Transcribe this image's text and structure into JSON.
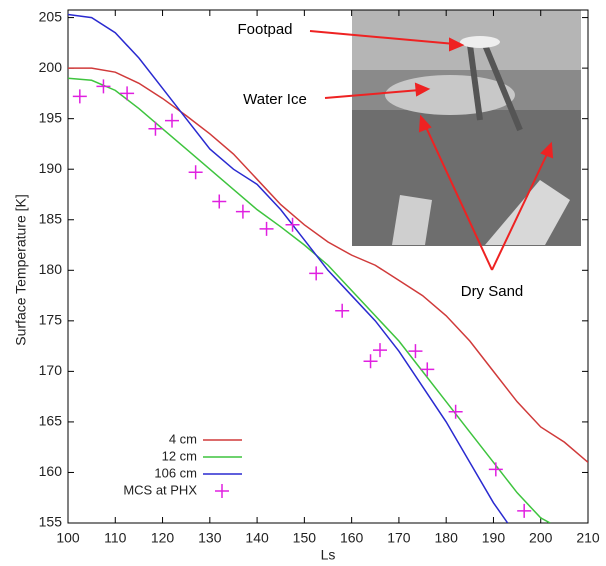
{
  "chart_data": {
    "type": "line",
    "xlabel": "Ls",
    "ylabel": "Surface Temperature [K]",
    "xlim": [
      100,
      210
    ],
    "ylim": [
      155,
      205.75
    ],
    "xticks": [
      100,
      110,
      120,
      130,
      140,
      150,
      160,
      170,
      180,
      190,
      200,
      210
    ],
    "yticks": [
      155,
      160,
      165,
      170,
      175,
      180,
      185,
      190,
      195,
      200,
      205
    ],
    "grid": false,
    "legend": "lower left",
    "annotations": [
      {
        "text": "Footpad"
      },
      {
        "text": "Water Ice"
      },
      {
        "text": "Dry Sand"
      }
    ],
    "series": [
      {
        "name": "4 cm",
        "type": "line",
        "color": "#d03a3a",
        "x": [
          100,
          105,
          110,
          115,
          120,
          125,
          130,
          135,
          140,
          145,
          150,
          155,
          160,
          165,
          170,
          175,
          180,
          185,
          190,
          195,
          200,
          205,
          210
        ],
        "values": [
          200,
          200,
          199.6,
          198.5,
          197,
          195.3,
          193.5,
          191.5,
          189,
          186.5,
          184.5,
          182.8,
          181.5,
          180.5,
          179,
          177.5,
          175.5,
          173,
          170,
          167,
          164.5,
          163,
          161
        ]
      },
      {
        "name": "12 cm",
        "type": "line",
        "color": "#3ec43e",
        "x": [
          100,
          105,
          110,
          115,
          120,
          125,
          130,
          135,
          140,
          145,
          150,
          155,
          160,
          165,
          170,
          175,
          180,
          185,
          190,
          195,
          200,
          202
        ],
        "values": [
          199,
          198.8,
          197.8,
          196,
          194,
          192,
          190,
          188,
          186,
          184.3,
          182.5,
          180.5,
          178,
          175.5,
          173,
          170,
          167,
          164,
          161,
          158,
          155.5,
          155
        ]
      },
      {
        "name": "106 cm",
        "type": "line",
        "color": "#2a2ad0",
        "x": [
          100,
          105,
          110,
          115,
          120,
          125,
          130,
          135,
          140,
          145,
          150,
          155,
          160,
          165,
          170,
          175,
          180,
          185,
          190,
          193
        ],
        "values": [
          205.3,
          205,
          203.5,
          201,
          198,
          195,
          192,
          190,
          188.5,
          186,
          183,
          180,
          177.5,
          175,
          172,
          168.5,
          165,
          161,
          157,
          155
        ]
      },
      {
        "name": "MCS at PHX",
        "type": "scatter",
        "color": "#e020e0",
        "x": [
          102.5,
          107.5,
          112.5,
          118.5,
          122,
          127,
          132,
          137,
          142,
          147.5,
          152.5,
          158,
          164,
          166,
          173.5,
          176,
          182,
          190.5,
          196.5
        ],
        "values": [
          197.2,
          198.2,
          197.5,
          194,
          194.8,
          189.7,
          186.8,
          185.8,
          184.1,
          184.5,
          179.7,
          176,
          171,
          172.1,
          172,
          170.2,
          166,
          160.3,
          156.2
        ]
      }
    ]
  }
}
